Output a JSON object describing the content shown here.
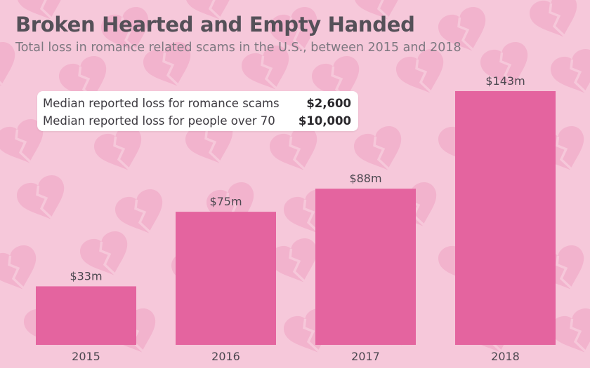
{
  "header": {
    "title": "Broken Hearted and Empty Handed",
    "subtitle": "Total loss in romance related scams in the U.S., between 2015 and 2018"
  },
  "info_box": {
    "rows": [
      {
        "label": "Median reported loss for romance scams",
        "value": "$2,600"
      },
      {
        "label": "Median reported loss for people over 70",
        "value": "$10,000"
      }
    ]
  },
  "chart_data": {
    "type": "bar",
    "title": "Broken Hearted and Empty Handed",
    "subtitle": "Total loss in romance related scams in the U.S., between 2015 and 2018",
    "categories": [
      "2015",
      "2016",
      "2017",
      "2018"
    ],
    "values": [
      33,
      75,
      88,
      143
    ],
    "data_labels": [
      "$33m",
      "$75m",
      "$88m",
      "$143m"
    ],
    "unit": "millions USD",
    "xlabel": "",
    "ylabel": "",
    "ylim": [
      0,
      143
    ],
    "grid": false,
    "bar_color": "#e4649f"
  },
  "colors": {
    "background": "#f6c8da",
    "heart_pattern": "#f2b3cd",
    "bar": "#e4649f",
    "title": "#545058",
    "subtitle": "#7d7880"
  },
  "icons": {
    "background_pattern": "broken-heart-icon"
  }
}
